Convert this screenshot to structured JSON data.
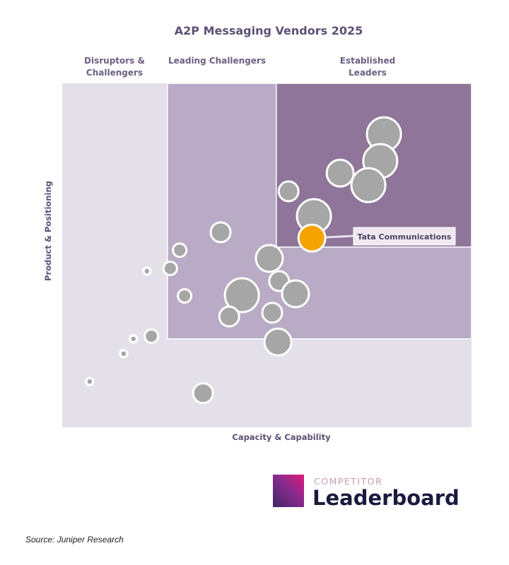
{
  "chart_data": {
    "type": "scatter",
    "subtype": "bubble",
    "title": "A2P Messaging Vendors 2025",
    "xlabel": "Capacity & Capability",
    "ylabel": "Product & Positioning",
    "xlim": [
      0,
      100
    ],
    "ylim": [
      0,
      100
    ],
    "grid": false,
    "segments": [
      {
        "label": "Disruptors & Challengers",
        "from": [
          0,
          0
        ],
        "color": "#e4e0ea"
      },
      {
        "label": "Leading Challengers",
        "from": [
          25.7,
          25.7
        ],
        "color": "#b9abc6"
      },
      {
        "label": "Established Leaders",
        "from": [
          52.3,
          52.4
        ],
        "color": "#8e7599"
      }
    ],
    "bubble_color": "#a6a6a6",
    "highlight_color": "#f5a300",
    "points": [
      {
        "x": 78.6,
        "y": 85.2,
        "size": 5
      },
      {
        "x": 77.7,
        "y": 77.4,
        "size": 5
      },
      {
        "x": 67.9,
        "y": 73.9,
        "size": 4
      },
      {
        "x": 74.8,
        "y": 70.4,
        "size": 5
      },
      {
        "x": 55.3,
        "y": 68.6,
        "size": 3
      },
      {
        "x": 61.5,
        "y": 61.4,
        "size": 5
      },
      {
        "x": 38.7,
        "y": 56.7,
        "size": 3
      },
      {
        "x": 28.7,
        "y": 51.5,
        "size": 2
      },
      {
        "x": 20.7,
        "y": 45.4,
        "size": 1
      },
      {
        "x": 26.4,
        "y": 46.2,
        "size": 2
      },
      {
        "x": 50.6,
        "y": 49.1,
        "size": 4
      },
      {
        "x": 53.0,
        "y": 42.5,
        "size": 3
      },
      {
        "x": 43.9,
        "y": 38.4,
        "size": 5
      },
      {
        "x": 57.0,
        "y": 38.8,
        "size": 4
      },
      {
        "x": 29.9,
        "y": 38.2,
        "size": 2
      },
      {
        "x": 51.3,
        "y": 33.3,
        "size": 3
      },
      {
        "x": 40.8,
        "y": 32.2,
        "size": 3
      },
      {
        "x": 52.7,
        "y": 24.8,
        "size": 4
      },
      {
        "x": 21.8,
        "y": 26.5,
        "size": 2
      },
      {
        "x": 17.4,
        "y": 25.7,
        "size": 1
      },
      {
        "x": 15.0,
        "y": 21.4,
        "size": 1
      },
      {
        "x": 6.7,
        "y": 13.3,
        "size": 1
      },
      {
        "x": 34.4,
        "y": 9.9,
        "size": 3
      },
      {
        "x": 61.0,
        "y": 55.0,
        "size": 4,
        "label": "Tata Communications",
        "highlight": true
      }
    ]
  },
  "logo": {
    "top": "COMPETITOR",
    "main": "Leaderboard"
  },
  "source": "Source: Juniper Research"
}
